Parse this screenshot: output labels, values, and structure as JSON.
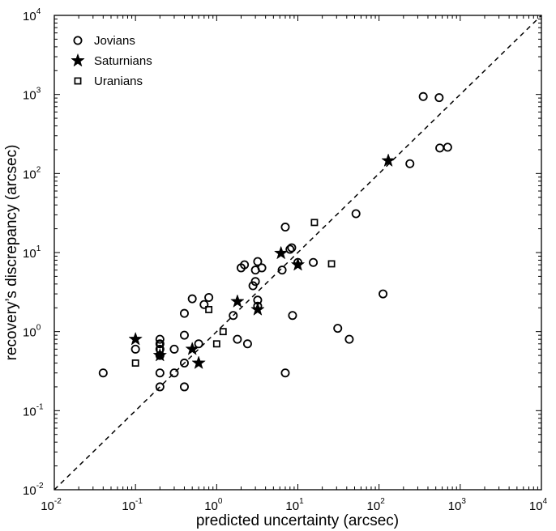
{
  "chart_data": {
    "type": "scatter",
    "xscale": "log",
    "yscale": "log",
    "xlabel": "predicted uncertainty (arcsec)",
    "ylabel": "recovery’s discrepancy (arcsec)",
    "xlim": [
      0.01,
      10000
    ],
    "ylim": [
      0.01,
      10000
    ],
    "x_tick_labels": [
      {
        "base": "10",
        "exp": "-2",
        "value": 0.01
      },
      {
        "base": "10",
        "exp": "-1",
        "value": 0.1
      },
      {
        "base": "10",
        "exp": "0",
        "value": 1
      },
      {
        "base": "10",
        "exp": "1",
        "value": 10
      },
      {
        "base": "10",
        "exp": "2",
        "value": 100
      },
      {
        "base": "10",
        "exp": "3",
        "value": 1000
      },
      {
        "base": "10",
        "exp": "4",
        "value": 10000
      }
    ],
    "y_tick_labels": [
      {
        "base": "10",
        "exp": "-2",
        "value": 0.01
      },
      {
        "base": "10",
        "exp": "-1",
        "value": 0.1
      },
      {
        "base": "10",
        "exp": "0",
        "value": 1
      },
      {
        "base": "10",
        "exp": "1",
        "value": 10
      },
      {
        "base": "10",
        "exp": "2",
        "value": 100
      },
      {
        "base": "10",
        "exp": "3",
        "value": 1000
      },
      {
        "base": "10",
        "exp": "4",
        "value": 10000
      }
    ],
    "reference_line": {
      "label": "y = x",
      "style": "dashed"
    },
    "legend": {
      "placement": "top-left"
    },
    "series": [
      {
        "name": "Jovians",
        "marker": "circle",
        "points": [
          [
            0.04,
            0.3
          ],
          [
            0.1,
            0.6
          ],
          [
            0.2,
            0.8
          ],
          [
            0.2,
            0.7
          ],
          [
            0.2,
            0.6
          ],
          [
            0.2,
            0.5
          ],
          [
            0.2,
            0.3
          ],
          [
            0.2,
            0.2
          ],
          [
            0.3,
            0.6
          ],
          [
            0.3,
            0.3
          ],
          [
            0.4,
            1.7
          ],
          [
            0.4,
            0.9
          ],
          [
            0.4,
            0.4
          ],
          [
            0.4,
            0.2
          ],
          [
            0.5,
            2.6
          ],
          [
            0.6,
            0.7
          ],
          [
            0.7,
            2.2
          ],
          [
            0.8,
            2.7
          ],
          [
            1.6,
            1.6
          ],
          [
            1.8,
            0.8
          ],
          [
            2.0,
            6.4
          ],
          [
            2.2,
            7.0
          ],
          [
            2.4,
            0.7
          ],
          [
            2.8,
            3.8
          ],
          [
            3.0,
            4.3
          ],
          [
            3.0,
            6.0
          ],
          [
            3.2,
            7.7
          ],
          [
            3.2,
            2.5
          ],
          [
            3.2,
            2.1
          ],
          [
            3.6,
            6.4
          ],
          [
            6.4,
            6.0
          ],
          [
            7.0,
            21
          ],
          [
            7.0,
            0.3
          ],
          [
            8.0,
            11
          ],
          [
            8.4,
            11.5
          ],
          [
            8.6,
            1.6
          ],
          [
            10,
            7.5
          ],
          [
            15.5,
            7.5
          ],
          [
            31,
            1.1
          ],
          [
            43,
            0.8
          ],
          [
            52,
            31
          ],
          [
            112,
            3.0
          ],
          [
            240,
            133
          ],
          [
            350,
            940
          ],
          [
            550,
            910
          ],
          [
            560,
            210
          ],
          [
            700,
            215
          ]
        ]
      },
      {
        "name": "Saturnians",
        "marker": "star",
        "points": [
          [
            0.1,
            0.8
          ],
          [
            0.2,
            0.5
          ],
          [
            0.5,
            0.6
          ],
          [
            0.6,
            0.4
          ],
          [
            1.8,
            2.4
          ],
          [
            3.2,
            1.9
          ],
          [
            6.2,
            9.8
          ],
          [
            10,
            7.0
          ],
          [
            130,
            145
          ]
        ]
      },
      {
        "name": "Uranians",
        "marker": "square",
        "points": [
          [
            0.1,
            0.4
          ],
          [
            0.2,
            0.6
          ],
          [
            0.2,
            0.7
          ],
          [
            0.8,
            1.9
          ],
          [
            1.0,
            0.7
          ],
          [
            1.2,
            1.0
          ],
          [
            16,
            24
          ],
          [
            26,
            7.2
          ]
        ]
      }
    ]
  }
}
